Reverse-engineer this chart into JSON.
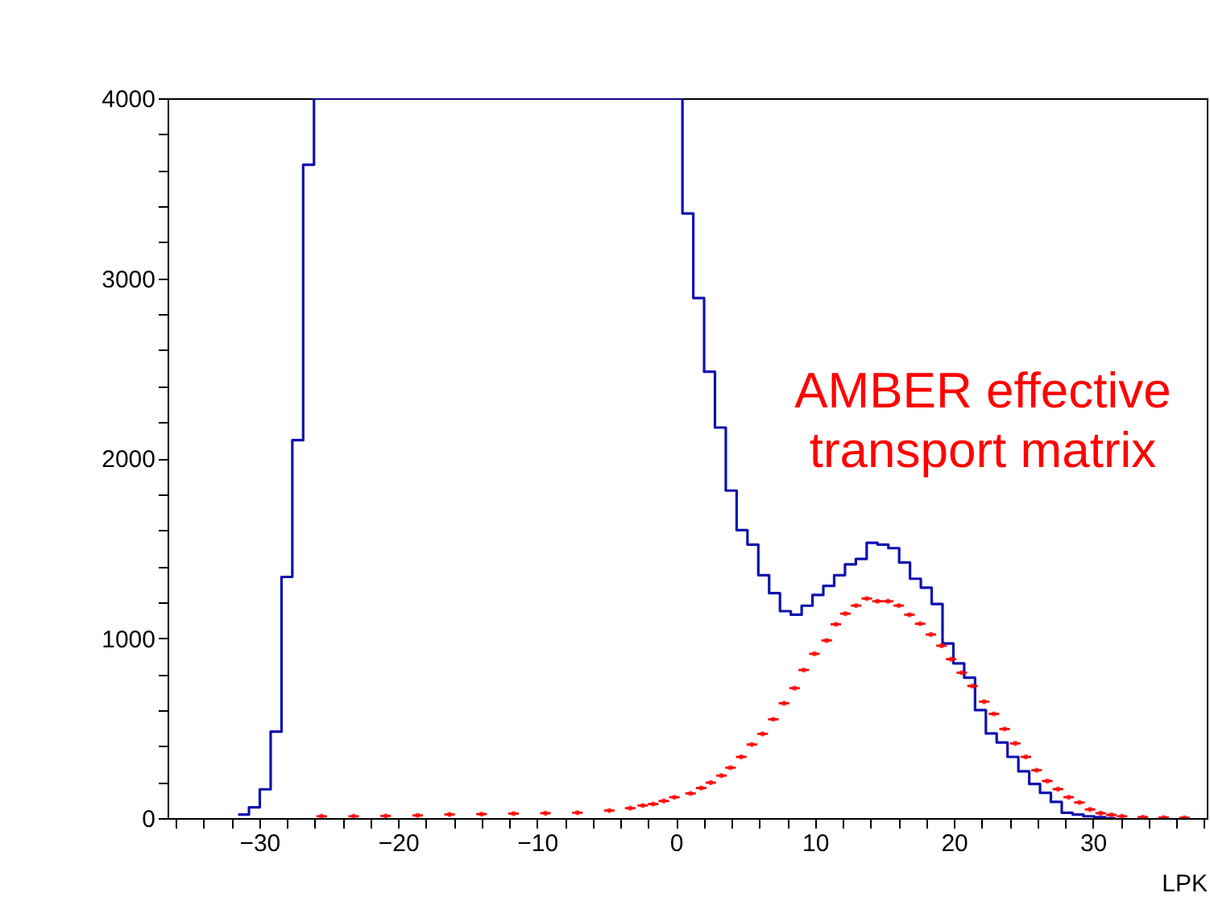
{
  "chart_data": {
    "type": "histogram",
    "bins": [
      -31.52,
      -30.74,
      -29.96,
      -29.18,
      -28.4,
      -27.62,
      -26.84,
      -26.06,
      -25.28,
      -24.5,
      -23.72,
      -22.94,
      -22.16,
      -21.38,
      -20.6,
      -19.82,
      -19.04,
      -18.26,
      -17.48,
      -16.7,
      -15.92,
      -15.14,
      -14.36,
      -13.58,
      -12.8,
      -12.02,
      -11.24,
      -10.46,
      -9.68,
      -8.9,
      -8.12,
      -7.34,
      -6.56,
      -5.78,
      -5.0,
      -4.22,
      -3.44,
      -2.66,
      -1.88,
      -1.1,
      -0.32,
      0.46,
      1.24,
      2.02,
      2.8,
      3.58,
      4.36,
      5.14,
      5.92,
      6.7,
      7.48,
      8.26,
      9.04,
      9.82,
      10.6,
      11.38,
      12.16,
      12.94,
      13.72,
      14.5,
      15.28,
      16.06,
      16.84,
      17.62,
      18.4,
      19.18,
      19.96,
      20.74,
      21.52,
      22.3,
      23.08,
      23.86,
      24.64,
      25.42,
      26.2,
      26.98,
      27.76,
      28.54,
      29.32,
      30.1,
      30.88,
      31.66
    ],
    "series": [
      {
        "color": "#1010b0",
        "values": [
          20,
          60,
          160,
          480,
          1340,
          2100,
          3630,
          4000,
          4000,
          4000,
          4000,
          4000,
          4000,
          4000,
          4000,
          4000,
          4000,
          4000,
          4000,
          4000,
          4000,
          4000,
          4000,
          4000,
          4000,
          4000,
          4000,
          4000,
          4000,
          4000,
          4000,
          4000,
          4000,
          4000,
          4000,
          4000,
          4000,
          4000,
          4000,
          4000,
          4000,
          3360,
          2890,
          2480,
          2170,
          1820,
          1600,
          1520,
          1350,
          1250,
          1150,
          1130,
          1180,
          1240,
          1290,
          1350,
          1410,
          1440,
          1530,
          1520,
          1500,
          1420,
          1330,
          1280,
          1190,
          970,
          860,
          780,
          600,
          470,
          420,
          340,
          260,
          190,
          140,
          90,
          30,
          20,
          10,
          5,
          0
        ]
      },
      {
        "type": "scatter",
        "color": "#ff0000",
        "x": [
          -25.5,
          -23.2,
          -20.9,
          -18.6,
          -16.3,
          -14.0,
          -11.7,
          -9.4,
          -7.1,
          -4.8,
          -3.3,
          -2.4,
          -1.65,
          -0.88,
          -0.12,
          1.04,
          1.81,
          2.5,
          3.27,
          3.92,
          4.69,
          5.46,
          6.23,
          7.0,
          7.77,
          8.53,
          9.19,
          9.96,
          10.84,
          11.5,
          12.19,
          12.96,
          13.73,
          14.5,
          15.26,
          16.03,
          16.8,
          17.57,
          18.34,
          19.11,
          19.8,
          20.57,
          21.34,
          22.18,
          22.88,
          23.65,
          24.41,
          25.18,
          25.95,
          26.72,
          27.49,
          28.26,
          29.03,
          29.8,
          30.56,
          31.33,
          32.1,
          33.6,
          35.1,
          36.6
        ],
        "values": [
          10,
          10,
          12,
          15,
          20,
          22,
          25,
          27,
          30,
          42,
          55,
          70,
          78,
          95,
          116,
          137,
          167,
          197,
          236,
          280,
          340,
          409,
          468,
          549,
          638,
          722,
          823,
          913,
          987,
          1077,
          1136,
          1181,
          1220,
          1205,
          1205,
          1181,
          1130,
          1080,
          1020,
          958,
          883,
          808,
          734,
          647,
          579,
          495,
          415,
          340,
          266,
          206,
          161,
          116,
          87,
          48,
          27,
          18,
          10,
          5,
          3,
          2
        ],
        "xerrors": [
          0.38,
          0.38,
          0.38,
          0.38,
          0.38,
          0.38,
          0.38,
          0.38,
          0.38,
          0.38,
          0.38,
          0.38,
          0.38,
          0.38,
          0.38,
          0.38,
          0.38,
          0.38,
          0.38,
          0.38,
          0.38,
          0.38,
          0.38,
          0.38,
          0.38,
          0.38,
          0.38,
          0.38,
          0.38,
          0.38,
          0.38,
          0.38,
          0.38,
          0.38,
          0.38,
          0.38,
          0.38,
          0.38,
          0.38,
          0.38,
          0.38,
          0.38,
          0.38,
          0.38,
          0.38,
          0.38,
          0.38,
          0.38,
          0.38,
          0.38,
          0.38,
          0.38,
          0.38,
          0.38,
          0.38,
          0.38,
          0.38,
          0.38,
          0.38,
          0.38
        ]
      }
    ],
    "xlim": [
      -36.6,
      38.2
    ],
    "xticks": [
      {
        "value": -36,
        "label": null
      },
      {
        "value": -34,
        "label": null
      },
      {
        "value": -32,
        "label": null
      },
      -30,
      {
        "value": -28,
        "label": null
      },
      {
        "value": -26,
        "label": null
      },
      {
        "value": -24,
        "label": null
      },
      {
        "value": -22,
        "label": null
      },
      -20,
      {
        "value": -18,
        "label": null
      },
      {
        "value": -16,
        "label": null
      },
      {
        "value": -14,
        "label": null
      },
      {
        "value": -12,
        "label": null
      },
      -10,
      {
        "value": -8,
        "label": null
      },
      {
        "value": -6,
        "label": null
      },
      {
        "value": -4,
        "label": null
      },
      {
        "value": -2,
        "label": null
      },
      0,
      {
        "value": 2,
        "label": null
      },
      {
        "value": 4,
        "label": null
      },
      {
        "value": 6,
        "label": null
      },
      {
        "value": 8,
        "label": null
      },
      10,
      {
        "value": 12,
        "label": null
      },
      {
        "value": 14,
        "label": null
      },
      {
        "value": 16,
        "label": null
      },
      {
        "value": 18,
        "label": null
      },
      20,
      {
        "value": 22,
        "label": null
      },
      {
        "value": 24,
        "label": null
      },
      {
        "value": 26,
        "label": null
      },
      {
        "value": 28,
        "label": null
      },
      30,
      {
        "value": 32,
        "label": null
      },
      {
        "value": 34,
        "label": null
      },
      {
        "value": 36,
        "label": null
      },
      {
        "value": 38,
        "label": null
      }
    ],
    "ylim": [
      0,
      4000
    ],
    "yticks": [
      0,
      {
        "value": 200,
        "label": null
      },
      {
        "value": 400,
        "label": null
      },
      {
        "value": 600,
        "label": null
      },
      {
        "value": 800,
        "label": null
      },
      1000,
      {
        "value": 1200,
        "label": null
      },
      {
        "value": 1400,
        "label": null
      },
      {
        "value": 1600,
        "label": null
      },
      {
        "value": 1800,
        "label": null
      },
      2000,
      {
        "value": 2200,
        "label": null
      },
      {
        "value": 2400,
        "label": null
      },
      {
        "value": 2600,
        "label": null
      },
      {
        "value": 2800,
        "label": null
      },
      3000,
      {
        "value": 3200,
        "label": null
      },
      {
        "value": 3400,
        "label": null
      },
      {
        "value": 3600,
        "label": null
      },
      {
        "value": 3800,
        "label": null
      },
      4000
    ],
    "xlabel": "LPK",
    "annotations": [
      "AMBER effective\ntransport matrix"
    ]
  }
}
